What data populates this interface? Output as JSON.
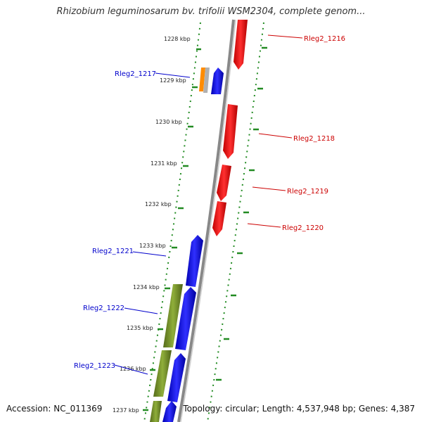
{
  "title": "Rhizobium leguminosarum bv. trifolii WSM2304, complete genom...",
  "accession_label": "Accession:",
  "accession": "NC_011369",
  "topology_label": "Topology:",
  "topology": "circular",
  "length_label": "Length:",
  "length": "4,537,948 bp",
  "genes_label": "Genes:",
  "genes": "4,387",
  "kbp_labels": [
    "1228 kbp",
    "1229 kbp",
    "1230 kbp",
    "1231 kbp",
    "1232 kbp",
    "1233 kbp",
    "1234 kbp",
    "1235 kbp",
    "1236 kbp",
    "1237 kbp"
  ],
  "genes_forward": [
    {
      "name": "Rleg2_1217",
      "color": "#0000cc"
    },
    {
      "name": "Rleg2_1221",
      "color": "#0000cc"
    },
    {
      "name": "Rleg2_1222",
      "color": "#0000cc"
    },
    {
      "name": "Rleg2_1223",
      "color": "#0000cc"
    }
  ],
  "genes_reverse": [
    {
      "name": "Rleg2_1216",
      "color": "#cc0000"
    },
    {
      "name": "Rleg2_1218",
      "color": "#cc0000"
    },
    {
      "name": "Rleg2_1219",
      "color": "#cc0000"
    },
    {
      "name": "Rleg2_1220",
      "color": "#cc0000"
    }
  ],
  "colors": {
    "forward": "#0000ff",
    "reverse": "#ff0000",
    "other_feature": "#6b8e23",
    "orange_feature": "#ff8c00",
    "grey_feature": "#aaaaaa",
    "backbone": "#888888",
    "dots": "#228b22"
  }
}
